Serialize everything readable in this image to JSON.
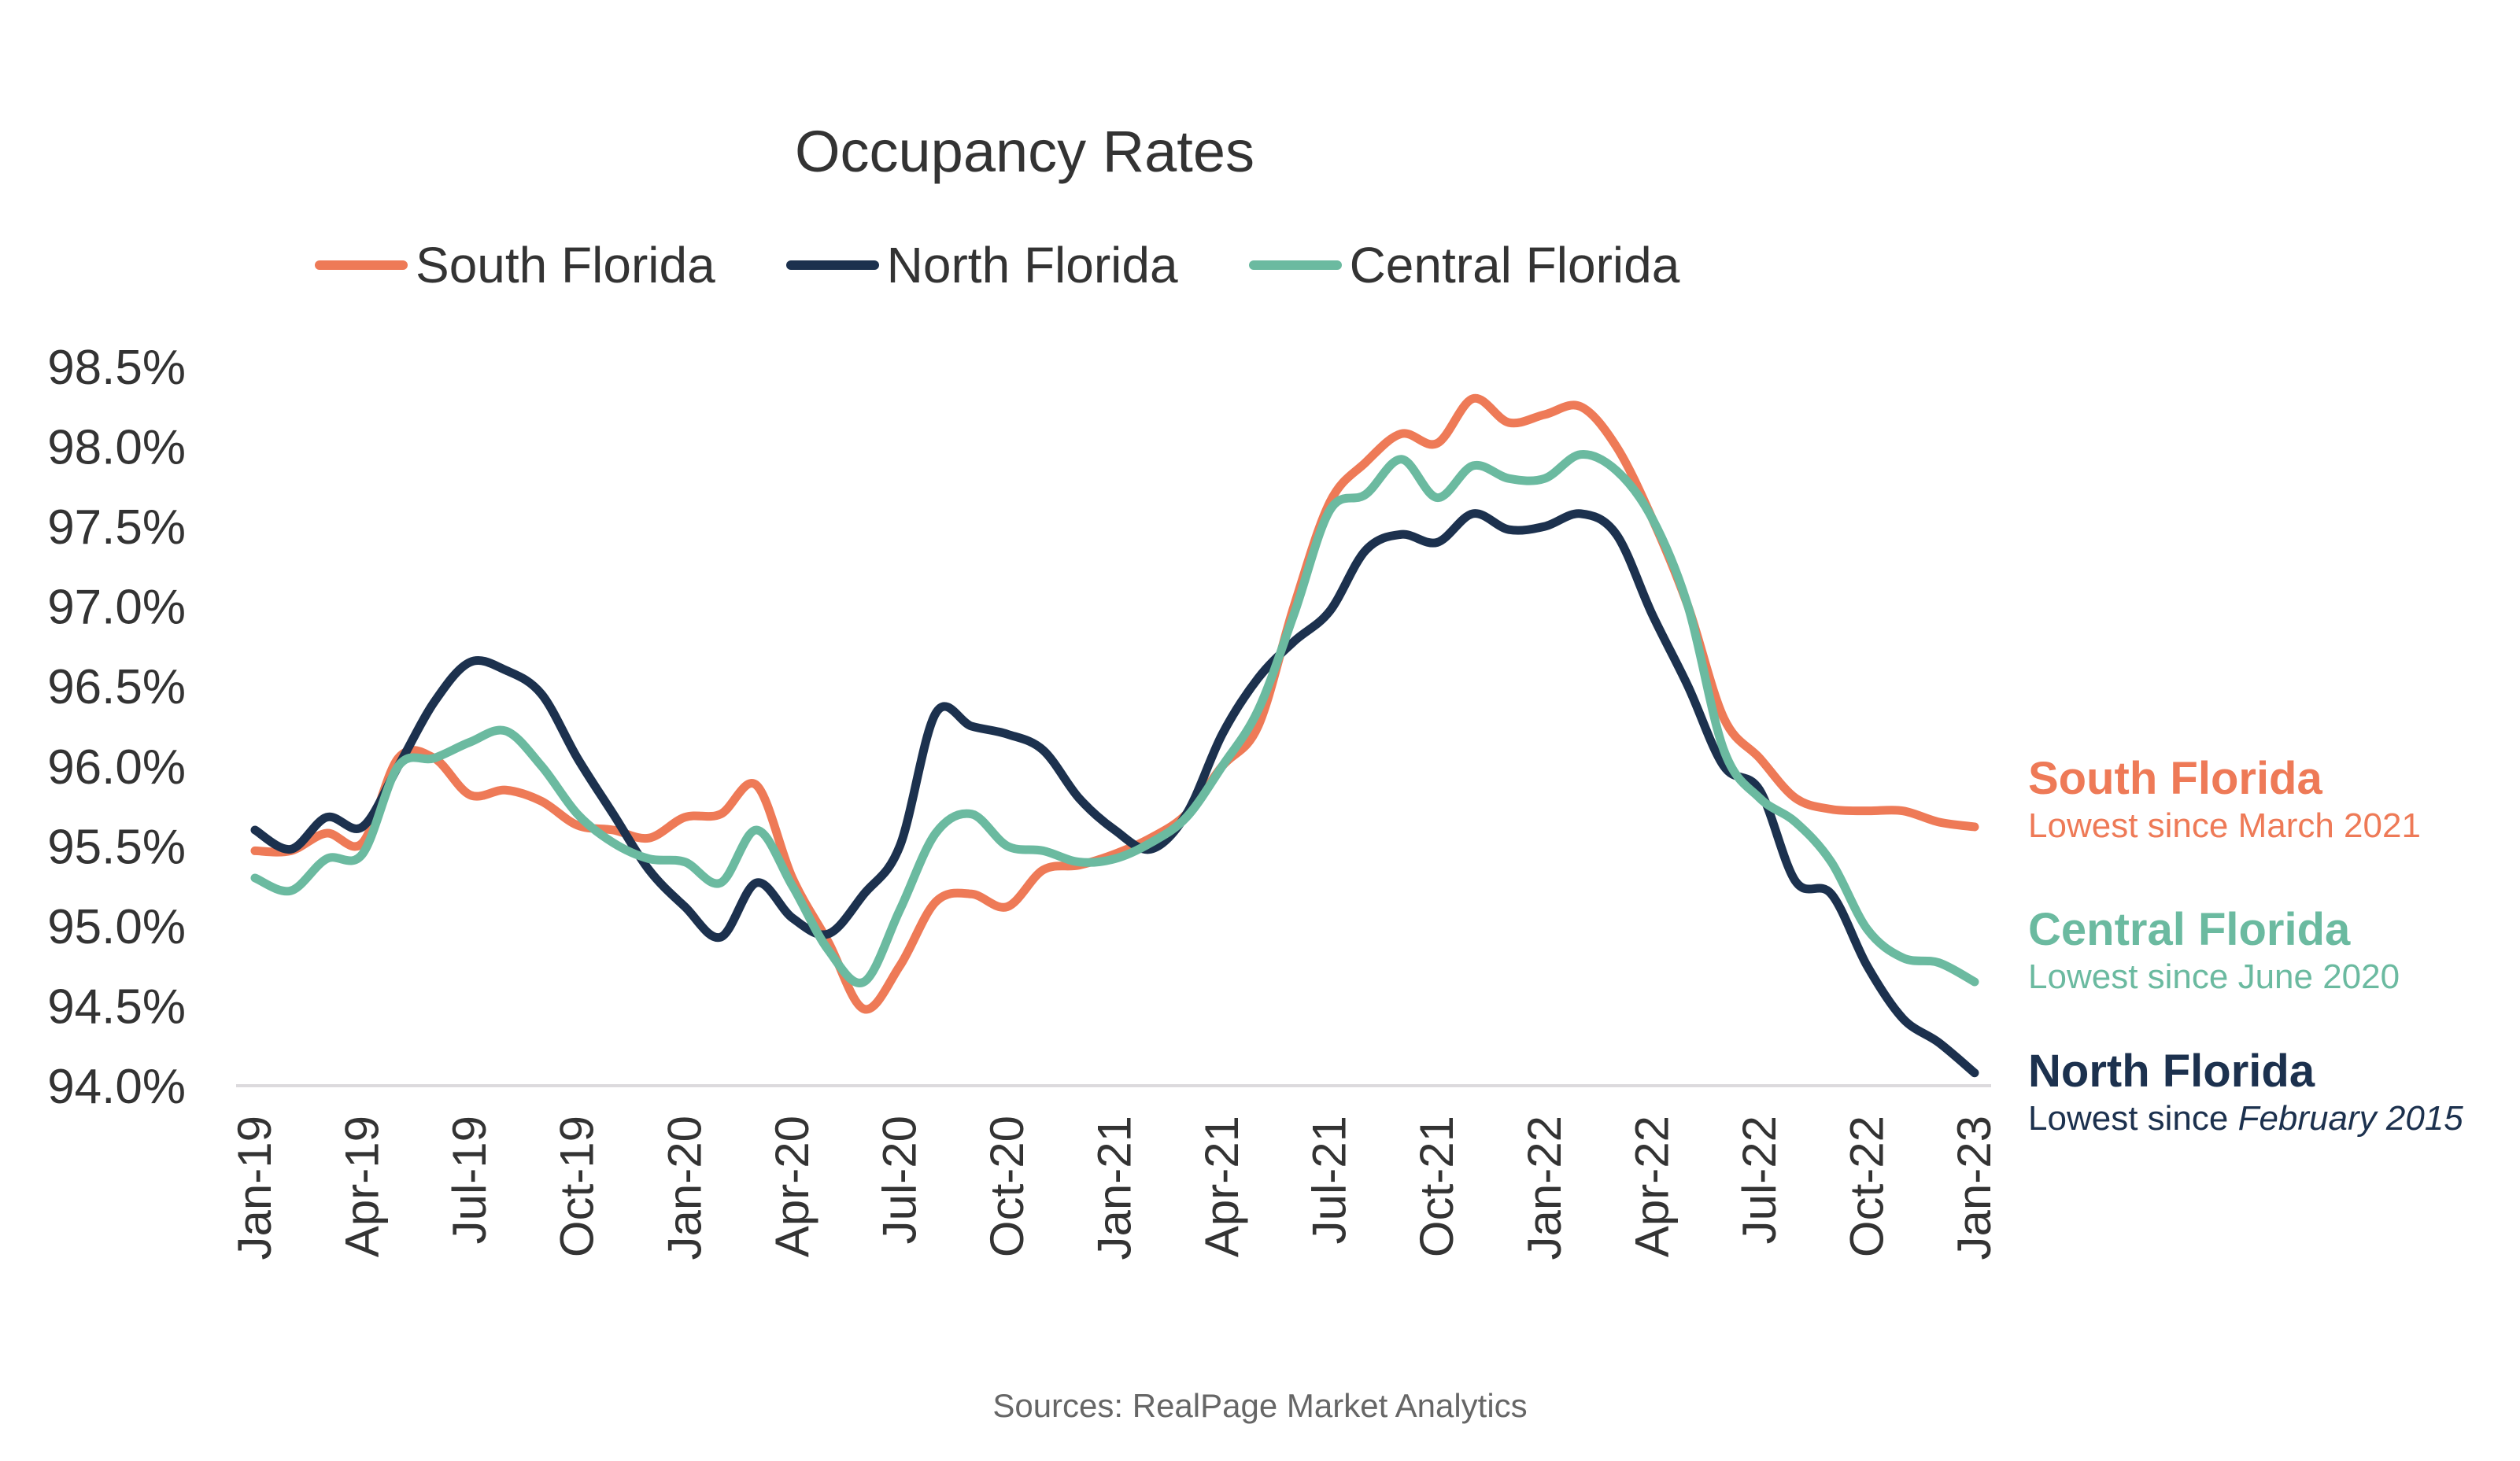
{
  "chart_data": {
    "type": "line",
    "title": "Occupancy Rates",
    "xlabel": "",
    "ylabel": "",
    "ylim": [
      94.0,
      98.5
    ],
    "yticks": [
      "94.0%",
      "94.5%",
      "95.0%",
      "95.5%",
      "96.0%",
      "96.5%",
      "97.0%",
      "97.5%",
      "98.0%",
      "98.5%"
    ],
    "ytick_values": [
      94.0,
      94.5,
      95.0,
      95.5,
      96.0,
      96.5,
      97.0,
      97.5,
      98.0,
      98.5
    ],
    "xtick_labels": [
      "Jan-19",
      "Apr-19",
      "Jul-19",
      "Oct-19",
      "Jan-20",
      "Apr-20",
      "Jul-20",
      "Oct-20",
      "Jan-21",
      "Apr-21",
      "Jul-21",
      "Oct-21",
      "Jan-22",
      "Apr-22",
      "Jul-22",
      "Oct-22",
      "Jan-23"
    ],
    "x_start": "Jan-19",
    "x_end": "Jan-23",
    "x_frequency": "monthly",
    "grid": false,
    "legend": "top",
    "series": [
      {
        "name": "South Florida",
        "color": "#EE7A57",
        "values": [
          95.47,
          95.47,
          95.58,
          95.52,
          96.05,
          96.05,
          95.82,
          95.85,
          95.78,
          95.63,
          95.6,
          95.55,
          95.68,
          95.7,
          95.88,
          95.3,
          94.9,
          94.48,
          94.75,
          95.15,
          95.2,
          95.12,
          95.35,
          95.38,
          95.45,
          95.55,
          95.7,
          96.0,
          96.25,
          97.0,
          97.65,
          97.9,
          98.08,
          98.02,
          98.3,
          98.15,
          98.2,
          98.25,
          98.0,
          97.55,
          97.0,
          96.3,
          96.05,
          95.8,
          95.73,
          95.72,
          95.72,
          95.65,
          95.62
        ]
      },
      {
        "name": "North Florida",
        "color": "#1C314E",
        "values": [
          95.6,
          95.48,
          95.68,
          95.62,
          96.0,
          96.4,
          96.65,
          96.6,
          96.45,
          96.05,
          95.7,
          95.35,
          95.12,
          94.93,
          95.27,
          95.05,
          94.95,
          95.2,
          95.5,
          96.33,
          96.25,
          96.2,
          96.1,
          95.8,
          95.6,
          95.48,
          95.7,
          96.2,
          96.55,
          96.78,
          96.97,
          97.35,
          97.45,
          97.4,
          97.58,
          97.48,
          97.5,
          97.58,
          97.45,
          96.95,
          96.5,
          96.0,
          95.85,
          95.28,
          95.2,
          94.75,
          94.42,
          94.27,
          94.08
        ]
      },
      {
        "name": "Central Florida",
        "color": "#6BBAA0",
        "values": [
          95.3,
          95.22,
          95.42,
          95.45,
          96.0,
          96.05,
          96.15,
          96.22,
          96.0,
          95.7,
          95.52,
          95.42,
          95.4,
          95.27,
          95.6,
          95.25,
          94.85,
          94.65,
          95.1,
          95.58,
          95.7,
          95.5,
          95.47,
          95.4,
          95.42,
          95.52,
          95.68,
          96.0,
          96.35,
          96.95,
          97.6,
          97.7,
          97.92,
          97.68,
          97.88,
          97.8,
          97.8,
          97.95,
          97.85,
          97.55,
          97.0,
          96.1,
          95.8,
          95.65,
          95.4,
          94.98,
          94.8,
          94.77,
          94.65
        ]
      }
    ],
    "annotations": [
      {
        "heading": "South Florida",
        "text": "Lowest since March 2021",
        "color": "#EE7A57"
      },
      {
        "heading": "Central Florida",
        "text": "Lowest since June 2020",
        "color": "#6BBAA0"
      },
      {
        "heading": "North Florida",
        "text_plain": "Lowest since ",
        "text_italic": "February 2015",
        "color": "#1C314E"
      }
    ],
    "source": "Sources: RealPage Market Analytics"
  }
}
